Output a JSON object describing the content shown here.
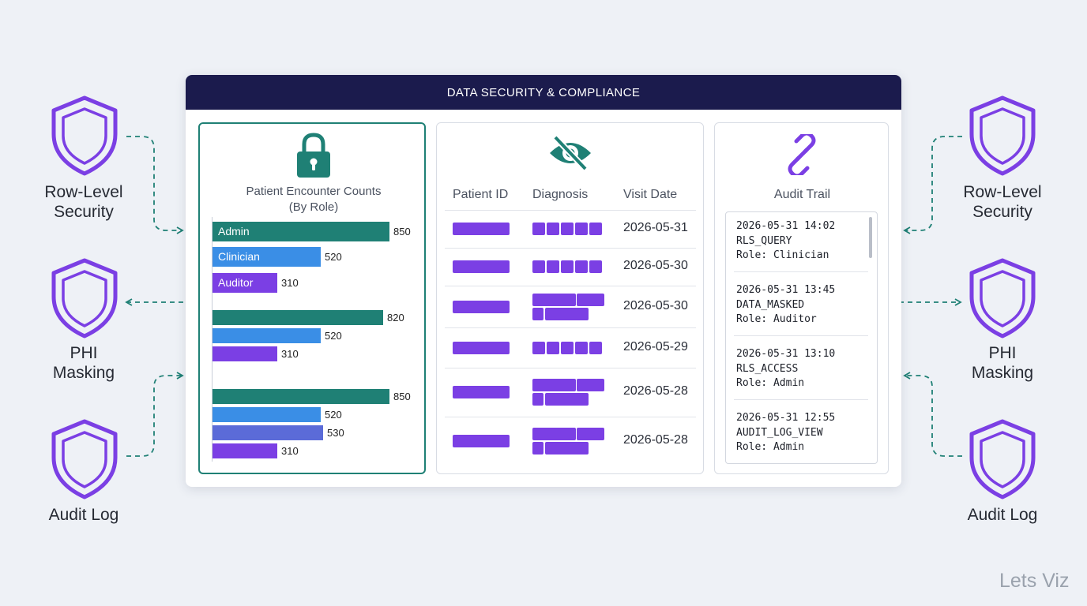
{
  "colors": {
    "teal": "#1f8075",
    "blue": "#3a8ee6",
    "purple": "#7b3fe4",
    "navy": "#1b1b4d",
    "shield": "#7b3fe4"
  },
  "left_features": [
    {
      "label": "Row-Level\nSecurity",
      "icon": "shield-icon"
    },
    {
      "label": "PHI\nMasking",
      "icon": "shield-icon"
    },
    {
      "label": "Audit Log",
      "icon": "shield-icon"
    }
  ],
  "right_features": [
    {
      "label": "Row-Level\nSecurity",
      "icon": "shield-icon"
    },
    {
      "label": "PHI\nMasking",
      "icon": "shield-icon"
    },
    {
      "label": "Audit Log",
      "icon": "shield-icon"
    }
  ],
  "header": {
    "title": "DATA SECURITY & COMPLIANCE"
  },
  "chart": {
    "icon": "lock-icon",
    "title_line1": "Patient Encounter Counts",
    "title_line2": "(By Role)"
  },
  "chart_data": {
    "type": "bar",
    "orientation": "horizontal",
    "title": "Patient Encounter Counts (By Role)",
    "groups": [
      {
        "bars": [
          {
            "label": "Admin",
            "value": 850,
            "color": "#1f8075"
          },
          {
            "label": "Clinician",
            "value": 520,
            "color": "#3a8ee6"
          },
          {
            "label": "Auditor",
            "value": 310,
            "color": "#7b3fe4"
          }
        ]
      },
      {
        "bars": [
          {
            "label": "",
            "value": 820,
            "color": "#1f8075"
          },
          {
            "label": "",
            "value": 520,
            "color": "#3a8ee6"
          },
          {
            "label": "",
            "value": 310,
            "color": "#7b3fe4"
          }
        ]
      },
      {
        "bars": [
          {
            "label": "",
            "value": 850,
            "color": "#1f8075"
          },
          {
            "label": "",
            "value": 520,
            "color": "#3a8ee6"
          },
          {
            "label": "",
            "value": 530,
            "color": "#5b6bd8"
          },
          {
            "label": "",
            "value": 310,
            "color": "#7b3fe4"
          }
        ]
      }
    ]
  },
  "table": {
    "icon": "eye-off-icon",
    "columns": [
      "Patient ID",
      "Diagnosis",
      "Visit Date"
    ],
    "rows": [
      {
        "visit_date": "2026-05-31",
        "diagnosis_lines": 1
      },
      {
        "visit_date": "2026-05-30",
        "diagnosis_lines": 1
      },
      {
        "visit_date": "2026-05-30",
        "diagnosis_lines": 2
      },
      {
        "visit_date": "2026-05-29",
        "diagnosis_lines": 1
      },
      {
        "visit_date": "2026-05-28",
        "diagnosis_lines": 2
      },
      {
        "visit_date": "2026-05-28",
        "diagnosis_lines": 2
      }
    ]
  },
  "audit": {
    "icon": "link-icon",
    "title": "Audit Trail",
    "entries": [
      {
        "time": "2026-05-31 14:02",
        "action": "RLS_QUERY",
        "role": "Role: Clinician"
      },
      {
        "time": "2026-05-31 13:45",
        "action": "DATA_MASKED",
        "role": "Role: Auditor"
      },
      {
        "time": "2026-05-31 13:10",
        "action": "RLS_ACCESS",
        "role": "Role: Admin"
      },
      {
        "time": "2026-05-31 12:55",
        "action": "AUDIT_LOG_VIEW",
        "role": "Role: Admin"
      }
    ]
  },
  "watermark": "Lets Viz"
}
